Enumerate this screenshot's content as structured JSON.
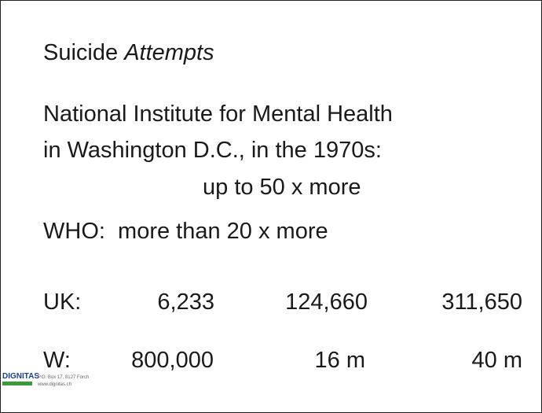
{
  "slide": {
    "title": {
      "plain": "Suicide",
      "italic": "Attempts"
    },
    "lines": [
      "National Institute for Mental Health",
      "in Washington D.C., in the 1970s:",
      "up to 50 x more",
      "WHO:  more than 20 x more"
    ],
    "rows": [
      [
        "UK:",
        "6,233",
        "124,660",
        "311,650"
      ],
      [
        "W:",
        "800,000",
        "16 m",
        "40 m"
      ]
    ],
    "footer": {
      "logo": "DIGNITAS",
      "address": "P.O. Box 17, 8127 Forch",
      "web": "www.dignitas.ch"
    }
  }
}
